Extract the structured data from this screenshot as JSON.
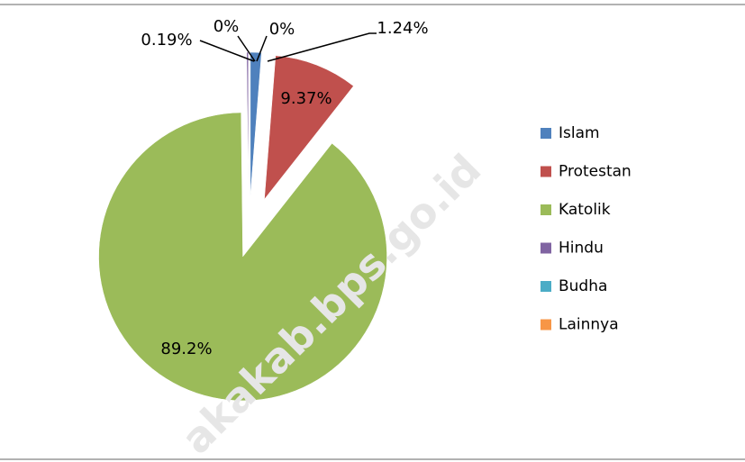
{
  "chart_data": {
    "type": "pie",
    "categories": [
      "Islam",
      "Protestan",
      "Katolik",
      "Hindu",
      "Budha",
      "Lainnya"
    ],
    "values": [
      1.24,
      9.37,
      89.2,
      0.19,
      0,
      0
    ],
    "value_labels": [
      "1.24%",
      "9.37%",
      "89.2%",
      "0.19%",
      "0%",
      "0%"
    ],
    "colors": [
      "#4f81bd",
      "#c0504d",
      "#9bbb59",
      "#8064a2",
      "#4bacc6",
      "#f79646"
    ],
    "legend": "right",
    "watermark": "akakab.bps.go.id"
  }
}
